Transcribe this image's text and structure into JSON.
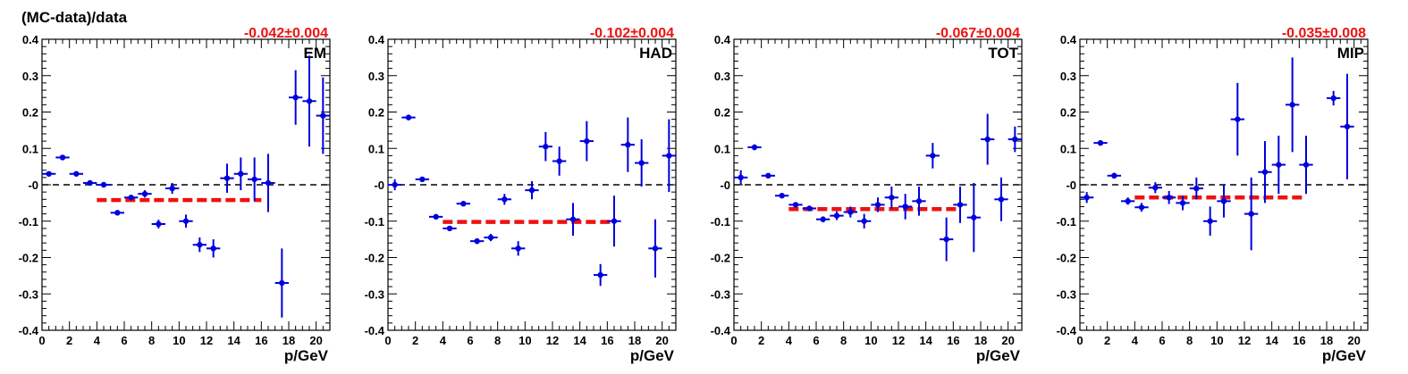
{
  "figure": {
    "ylabel": "(MC-data)/data"
  },
  "colors": {
    "points": "#0000dd",
    "fit": "#ee1111",
    "reference": "#000000",
    "axis": "#000000"
  },
  "chart_data": [
    {
      "type": "scatter",
      "title": "EM",
      "fit_label": "-0.042±0.004",
      "xlabel": "p/GeV",
      "ylabel": "(MC-data)/data",
      "xlim": [
        0,
        21
      ],
      "ylim": [
        -0.4,
        0.4
      ],
      "xticks": [
        "0",
        "2",
        "4",
        "6",
        "8",
        "10",
        "12",
        "14",
        "16",
        "18",
        "20"
      ],
      "yticks": [
        "-0.4",
        "-0.3",
        "-0.2",
        "-0.1",
        "-0",
        "0.1",
        "0.2",
        "0.3",
        "0.4"
      ],
      "reference_line_y": 0,
      "fit": {
        "value": -0.042,
        "error": 0.004,
        "x_range": [
          4,
          16
        ]
      },
      "points": [
        {
          "x": 0.5,
          "y": 0.03,
          "err": 0.006
        },
        {
          "x": 1.5,
          "y": 0.075,
          "err": 0.004
        },
        {
          "x": 2.5,
          "y": 0.03,
          "err": 0.005
        },
        {
          "x": 3.5,
          "y": 0.005,
          "err": 0.004
        },
        {
          "x": 4.5,
          "y": 0.0,
          "err": 0.004
        },
        {
          "x": 5.5,
          "y": -0.077,
          "err": 0.005
        },
        {
          "x": 6.5,
          "y": -0.035,
          "err": 0.005
        },
        {
          "x": 7.5,
          "y": -0.025,
          "err": 0.01
        },
        {
          "x": 8.5,
          "y": -0.108,
          "err": 0.012
        },
        {
          "x": 9.5,
          "y": -0.01,
          "err": 0.015
        },
        {
          "x": 10.5,
          "y": -0.1,
          "err": 0.018
        },
        {
          "x": 11.5,
          "y": -0.165,
          "err": 0.02
        },
        {
          "x": 12.5,
          "y": -0.175,
          "err": 0.025
        },
        {
          "x": 13.5,
          "y": 0.018,
          "err": 0.04
        },
        {
          "x": 14.5,
          "y": 0.03,
          "err": 0.045
        },
        {
          "x": 15.5,
          "y": 0.015,
          "err": 0.06
        },
        {
          "x": 16.5,
          "y": 0.005,
          "err": 0.08
        },
        {
          "x": 17.5,
          "y": -0.27,
          "err": 0.095
        },
        {
          "x": 18.5,
          "y": 0.24,
          "err": 0.075
        },
        {
          "x": 19.5,
          "y": 0.23,
          "err": 0.125
        },
        {
          "x": 20.5,
          "y": 0.19,
          "err": 0.105
        }
      ]
    },
    {
      "type": "scatter",
      "title": "HAD",
      "fit_label": "-0.102±0.004",
      "xlabel": "p/GeV",
      "ylabel": "",
      "xlim": [
        0,
        21
      ],
      "ylim": [
        -0.4,
        0.4
      ],
      "xticks": [
        "0",
        "2",
        "4",
        "6",
        "8",
        "10",
        "12",
        "14",
        "16",
        "18",
        "20"
      ],
      "yticks": [
        "-0.4",
        "-0.3",
        "-0.2",
        "-0.1",
        "-0",
        "0.1",
        "0.2",
        "0.3",
        "0.4"
      ],
      "reference_line_y": 0,
      "fit": {
        "value": -0.102,
        "error": 0.004,
        "x_range": [
          4,
          16.5
        ]
      },
      "points": [
        {
          "x": 0.5,
          "y": 0.0,
          "err": 0.015
        },
        {
          "x": 1.5,
          "y": 0.185,
          "err": 0.005
        },
        {
          "x": 2.5,
          "y": 0.015,
          "err": 0.006
        },
        {
          "x": 3.5,
          "y": -0.088,
          "err": 0.005
        },
        {
          "x": 4.5,
          "y": -0.12,
          "err": 0.005
        },
        {
          "x": 5.5,
          "y": -0.052,
          "err": 0.006
        },
        {
          "x": 6.5,
          "y": -0.155,
          "err": 0.008
        },
        {
          "x": 7.5,
          "y": -0.145,
          "err": 0.01
        },
        {
          "x": 8.5,
          "y": -0.04,
          "err": 0.015
        },
        {
          "x": 9.5,
          "y": -0.175,
          "err": 0.02
        },
        {
          "x": 10.5,
          "y": -0.015,
          "err": 0.025
        },
        {
          "x": 11.5,
          "y": 0.105,
          "err": 0.04
        },
        {
          "x": 12.5,
          "y": 0.065,
          "err": 0.04
        },
        {
          "x": 13.5,
          "y": -0.095,
          "err": 0.045
        },
        {
          "x": 14.5,
          "y": 0.12,
          "err": 0.055
        },
        {
          "x": 15.5,
          "y": -0.248,
          "err": 0.03
        },
        {
          "x": 16.5,
          "y": -0.1,
          "err": 0.07
        },
        {
          "x": 17.5,
          "y": 0.11,
          "err": 0.075
        },
        {
          "x": 18.5,
          "y": 0.06,
          "err": 0.065
        },
        {
          "x": 19.5,
          "y": -0.175,
          "err": 0.08
        },
        {
          "x": 20.5,
          "y": 0.08,
          "err": 0.1
        }
      ]
    },
    {
      "type": "scatter",
      "title": "TOT",
      "fit_label": "-0.067±0.004",
      "xlabel": "p/GeV",
      "ylabel": "",
      "xlim": [
        0,
        21
      ],
      "ylim": [
        -0.4,
        0.4
      ],
      "xticks": [
        "0",
        "2",
        "4",
        "6",
        "8",
        "10",
        "12",
        "14",
        "16",
        "18",
        "20"
      ],
      "yticks": [
        "-0.4",
        "-0.3",
        "-0.2",
        "-0.1",
        "-0",
        "0.1",
        "0.2",
        "0.3",
        "0.4"
      ],
      "reference_line_y": 0,
      "fit": {
        "value": -0.067,
        "error": 0.004,
        "x_range": [
          4,
          16.5
        ]
      },
      "points": [
        {
          "x": 0.5,
          "y": 0.02,
          "err": 0.02
        },
        {
          "x": 1.5,
          "y": 0.103,
          "err": 0.008
        },
        {
          "x": 2.5,
          "y": 0.025,
          "err": 0.006
        },
        {
          "x": 3.5,
          "y": -0.03,
          "err": 0.006
        },
        {
          "x": 4.5,
          "y": -0.055,
          "err": 0.006
        },
        {
          "x": 5.5,
          "y": -0.065,
          "err": 0.006
        },
        {
          "x": 6.5,
          "y": -0.095,
          "err": 0.008
        },
        {
          "x": 7.5,
          "y": -0.085,
          "err": 0.012
        },
        {
          "x": 8.5,
          "y": -0.075,
          "err": 0.015
        },
        {
          "x": 9.5,
          "y": -0.1,
          "err": 0.02
        },
        {
          "x": 10.5,
          "y": -0.055,
          "err": 0.02
        },
        {
          "x": 11.5,
          "y": -0.035,
          "err": 0.03
        },
        {
          "x": 12.5,
          "y": -0.06,
          "err": 0.035
        },
        {
          "x": 13.5,
          "y": -0.045,
          "err": 0.04
        },
        {
          "x": 14.5,
          "y": 0.08,
          "err": 0.035
        },
        {
          "x": 15.5,
          "y": -0.15,
          "err": 0.06
        },
        {
          "x": 16.5,
          "y": -0.055,
          "err": 0.05
        },
        {
          "x": 17.5,
          "y": -0.09,
          "err": 0.095
        },
        {
          "x": 18.5,
          "y": 0.125,
          "err": 0.07
        },
        {
          "x": 19.5,
          "y": -0.04,
          "err": 0.06
        },
        {
          "x": 20.5,
          "y": 0.125,
          "err": 0.035
        }
      ]
    },
    {
      "type": "scatter",
      "title": "MIP",
      "fit_label": "-0.035±0.008",
      "xlabel": "p/GeV",
      "ylabel": "",
      "xlim": [
        0,
        21
      ],
      "ylim": [
        -0.4,
        0.4
      ],
      "xticks": [
        "0",
        "2",
        "4",
        "6",
        "8",
        "10",
        "12",
        "14",
        "16",
        "18",
        "20"
      ],
      "yticks": [
        "-0.4",
        "-0.3",
        "-0.2",
        "-0.1",
        "-0",
        "0.1",
        "0.2",
        "0.3",
        "0.4"
      ],
      "reference_line_y": 0,
      "fit": {
        "value": -0.035,
        "error": 0.008,
        "x_range": [
          4,
          16.5
        ]
      },
      "points": [
        {
          "x": 0.5,
          "y": -0.035,
          "err": 0.015
        },
        {
          "x": 1.5,
          "y": 0.115,
          "err": 0.006
        },
        {
          "x": 2.5,
          "y": 0.025,
          "err": 0.008
        },
        {
          "x": 3.5,
          "y": -0.045,
          "err": 0.01
        },
        {
          "x": 4.5,
          "y": -0.062,
          "err": 0.012
        },
        {
          "x": 5.5,
          "y": -0.008,
          "err": 0.015
        },
        {
          "x": 6.5,
          "y": -0.035,
          "err": 0.018
        },
        {
          "x": 7.5,
          "y": -0.05,
          "err": 0.02
        },
        {
          "x": 8.5,
          "y": -0.01,
          "err": 0.03
        },
        {
          "x": 9.5,
          "y": -0.1,
          "err": 0.04
        },
        {
          "x": 10.5,
          "y": -0.045,
          "err": 0.045
        },
        {
          "x": 11.5,
          "y": 0.18,
          "err": 0.1
        },
        {
          "x": 12.5,
          "y": -0.08,
          "err": 0.1
        },
        {
          "x": 13.5,
          "y": 0.035,
          "err": 0.085
        },
        {
          "x": 14.5,
          "y": 0.055,
          "err": 0.08
        },
        {
          "x": 15.5,
          "y": 0.22,
          "err": 0.13
        },
        {
          "x": 16.5,
          "y": 0.055,
          "err": 0.08
        },
        {
          "x": 18.5,
          "y": 0.238,
          "err": 0.02
        },
        {
          "x": 19.5,
          "y": 0.16,
          "err": 0.145
        }
      ]
    }
  ]
}
